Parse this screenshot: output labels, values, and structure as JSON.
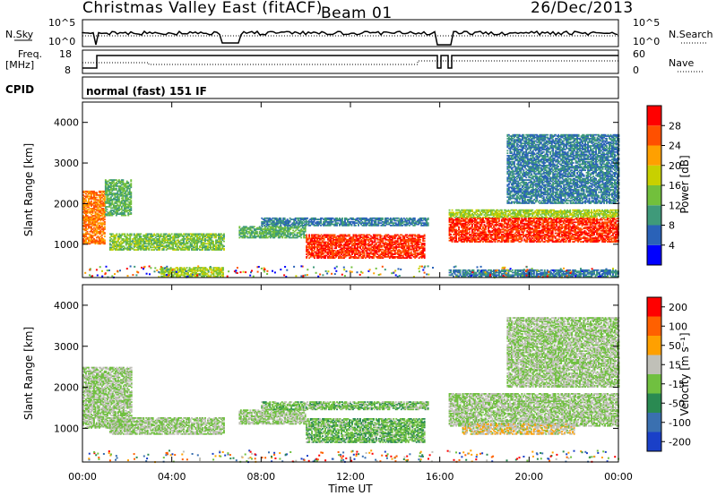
{
  "header": {
    "title": "Christmas Valley East (fitACF)",
    "beam": "Beam 01",
    "date": "26/Dec/2013"
  },
  "params": {
    "nsky_label": "N.Sky",
    "nsearch_label": "N.Search",
    "noise_ticks": [
      "10^5",
      "10^0"
    ],
    "freq_label_1": "Freq.",
    "freq_label_2": "[MHz]",
    "freq_ticks": [
      "18",
      "8"
    ],
    "nave_label": "Nave",
    "nave_ticks": [
      "60",
      "0"
    ],
    "cpid_label": "CPID",
    "cpid_text": "normal (fast) 151 IF"
  },
  "power_panel": {
    "ylabel": "Slant Range [km]",
    "yticks": [
      "4000",
      "3000",
      "2000",
      "1000"
    ],
    "colorbar_label": "Power [dB]",
    "colorbar_ticks": [
      "28",
      "24",
      "20",
      "16",
      "12",
      "8",
      "4"
    ],
    "colors": [
      "#0000ff",
      "#2a62b8",
      "#3f9a7a",
      "#72c03c",
      "#c8d000",
      "#ffa000",
      "#ff5000",
      "#ff0000"
    ]
  },
  "velocity_panel": {
    "ylabel": "Slant Range [km]",
    "yticks": [
      "4000",
      "3000",
      "2000",
      "1000"
    ],
    "colorbar_label": "Velocity [m s⁻¹]",
    "colorbar_ticks": [
      "200",
      "100",
      "50",
      "15",
      "-15",
      "-50",
      "-100",
      "-200"
    ],
    "colors": [
      "#1a40c8",
      "#3a70b0",
      "#2a8a52",
      "#70c040",
      "#c0c0b8",
      "#ffa000",
      "#ff6000",
      "#ff0000"
    ]
  },
  "xaxis": {
    "label": "Time UT",
    "ticks": [
      "00:00",
      "04:00",
      "08:00",
      "12:00",
      "16:00",
      "20:00",
      "00:00"
    ]
  },
  "chart_data": {
    "type": "heatmap",
    "title": "Christmas Valley East (fitACF)",
    "subtitle": "Beam 01",
    "date": "26/Dec/2013",
    "xlabel": "Time UT",
    "ylabel": "Slant Range [km]",
    "x_range_hours": [
      0,
      24
    ],
    "y_range_km": [
      180,
      4500
    ],
    "panels": [
      {
        "name": "Power [dB]",
        "scale": [
          0,
          32
        ],
        "colorbar_ticks": [
          4,
          8,
          12,
          16,
          20,
          24,
          28
        ],
        "regions": [
          {
            "t0": 0.0,
            "t1": 1.0,
            "r0": 1000,
            "r1": 2300,
            "value": 24
          },
          {
            "t0": 1.0,
            "t1": 2.2,
            "r0": 1700,
            "r1": 2600,
            "value": 12
          },
          {
            "t0": 1.2,
            "t1": 6.3,
            "r0": 850,
            "r1": 1250,
            "value": 14
          },
          {
            "t0": 3.5,
            "t1": 6.3,
            "r0": 200,
            "r1": 420,
            "value": 16
          },
          {
            "t0": 7.0,
            "t1": 10.0,
            "r0": 1150,
            "r1": 1450,
            "value": 12
          },
          {
            "t0": 10.0,
            "t1": 15.3,
            "r0": 650,
            "r1": 1250,
            "value": 28
          },
          {
            "t0": 8.0,
            "t1": 15.5,
            "r0": 1450,
            "r1": 1650,
            "value": 8
          },
          {
            "t0": 16.4,
            "t1": 24.0,
            "r0": 1650,
            "r1": 1850,
            "value": 16
          },
          {
            "t0": 16.4,
            "t1": 24.0,
            "r0": 1050,
            "r1": 1650,
            "value": 28
          },
          {
            "t0": 16.4,
            "t1": 24.0,
            "r0": 200,
            "r1": 380,
            "value": 8
          },
          {
            "t0": 19.0,
            "t1": 24.0,
            "r0": 2000,
            "r1": 3700,
            "value": 8
          }
        ]
      },
      {
        "name": "Velocity [m s-1]",
        "scale": [
          -250,
          250
        ],
        "colorbar_ticks": [
          -200,
          -100,
          -50,
          -15,
          15,
          50,
          100,
          200
        ],
        "regions": [
          {
            "t0": 0.0,
            "t1": 2.2,
            "r0": 1000,
            "r1": 2500,
            "value": 0
          },
          {
            "t0": 1.2,
            "t1": 6.3,
            "r0": 850,
            "r1": 1250,
            "value": 0
          },
          {
            "t0": 7.0,
            "t1": 10.0,
            "r0": 1100,
            "r1": 1450,
            "value": 0
          },
          {
            "t0": 10.0,
            "t1": 15.3,
            "r0": 650,
            "r1": 1250,
            "value": -40
          },
          {
            "t0": 8.0,
            "t1": 15.5,
            "r0": 1450,
            "r1": 1650,
            "value": -30
          },
          {
            "t0": 16.4,
            "t1": 24.0,
            "r0": 1050,
            "r1": 1850,
            "value": 0
          },
          {
            "t0": 17.0,
            "t1": 22.0,
            "r0": 850,
            "r1": 1100,
            "value": 40
          },
          {
            "t0": 19.0,
            "t1": 24.0,
            "r0": 2000,
            "r1": 3700,
            "value": 0
          }
        ]
      }
    ]
  }
}
